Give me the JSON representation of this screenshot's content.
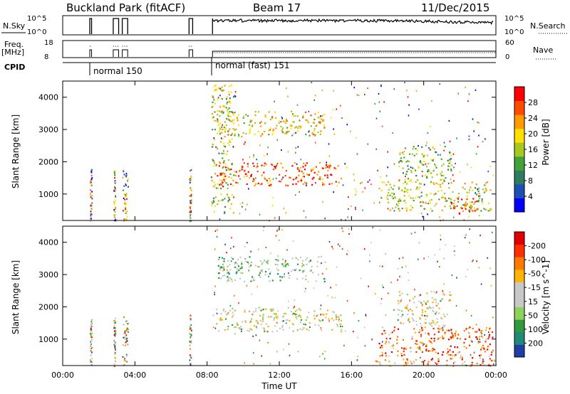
{
  "header": {
    "title": "Buckland Park (fitACF)",
    "beam": "Beam 17",
    "date": "11/Dec/2015"
  },
  "top_panels": {
    "nsky_label": "N.Sky",
    "nsky_ticks": [
      "10^5",
      "10^0"
    ],
    "nsearch_label": "N.Search",
    "nsearch_ticks": [
      "10^5",
      "10^0"
    ],
    "freq_label": "Freq.",
    "freq_unit": "[MHz]",
    "freq_ticks": [
      "18",
      "8"
    ],
    "nave_label": "Nave",
    "nave_ticks": [
      "60",
      "0"
    ],
    "cpid_label": "CPID",
    "cpid_modes": [
      {
        "label": "normal 150",
        "start_hour": 1.5
      },
      {
        "label": "normal (fast) 151",
        "start_hour": 8.3
      }
    ]
  },
  "chart_data": [
    {
      "type": "heatmap",
      "name": "power",
      "ylabel": "Slant Range [km]",
      "yticks": [
        1000,
        2000,
        3000,
        4000
      ],
      "ylim": [
        180,
        4500
      ],
      "xlim": [
        0,
        24
      ],
      "colorbar": {
        "label": "Power [dB]",
        "ticks": [
          4,
          8,
          12,
          16,
          20,
          24,
          28
        ],
        "colors": [
          "#0000ff",
          "#1e4fb4",
          "#2f7d5e",
          "#44a23a",
          "#a6c820",
          "#ffe000",
          "#ff9a00",
          "#ff4a00",
          "#ff0000"
        ]
      },
      "bands": [
        {
          "t0": 8.3,
          "t1": 15.4,
          "r0": 1250,
          "r1": 2000,
          "level": 0.85
        },
        {
          "t0": 8.5,
          "t1": 14.5,
          "r0": 2800,
          "r1": 3600,
          "level": 0.6
        },
        {
          "t0": 17.5,
          "t1": 23.8,
          "r0": 500,
          "r1": 1400,
          "level": 0.55
        },
        {
          "t0": 18.5,
          "t1": 21.5,
          "r0": 1400,
          "r1": 2500,
          "level": 0.45
        },
        {
          "t0": 8.2,
          "t1": 9.5,
          "r0": 400,
          "r1": 4400,
          "level": 0.5
        },
        {
          "t0": 21.5,
          "t1": 23.0,
          "r0": 400,
          "r1": 900,
          "level": 0.95
        }
      ]
    },
    {
      "type": "heatmap",
      "name": "velocity",
      "ylabel": "Slant Range [km]",
      "xlabel": "Time UT",
      "xticks": [
        "00:00",
        "04:00",
        "08:00",
        "12:00",
        "16:00",
        "20:00",
        "00:00"
      ],
      "yticks": [
        1000,
        2000,
        3000,
        4000
      ],
      "ylim": [
        180,
        4500
      ],
      "xlim": [
        0,
        24
      ],
      "colorbar": {
        "label": "Velocity [m s^-1]",
        "ticks": [
          "200",
          "100",
          "50",
          "15",
          "-15",
          "-50",
          "-100",
          "-200"
        ],
        "colors": [
          "#1f3fa6",
          "#1f8a78",
          "#2f9a3e",
          "#8fd25a",
          "#c8c8c8",
          "#c8c8c8",
          "#ffb400",
          "#ff7a00",
          "#ff3000",
          "#e00000"
        ]
      },
      "bands": [
        {
          "t0": 8.3,
          "t1": 15.4,
          "r0": 1250,
          "r1": 2000,
          "level": 0.5
        },
        {
          "t0": 8.5,
          "t1": 14.5,
          "r0": 2800,
          "r1": 3600,
          "level": 0.35
        },
        {
          "t0": 17.5,
          "t1": 23.8,
          "r0": 500,
          "r1": 1400,
          "level": 0.8
        },
        {
          "t0": 18.5,
          "t1": 21.5,
          "r0": 1400,
          "r1": 2500,
          "level": 0.5
        },
        {
          "t0": 17.0,
          "t1": 24.0,
          "r0": 180,
          "r1": 450,
          "level": 0.7
        }
      ]
    }
  ]
}
